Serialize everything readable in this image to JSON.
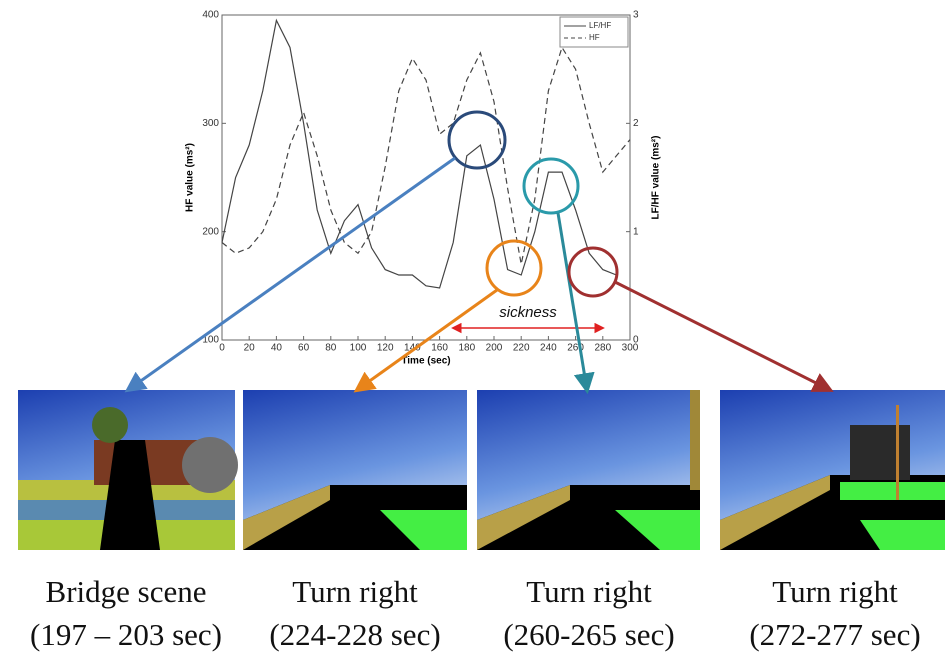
{
  "chart_data": {
    "type": "line",
    "x_label": "Time (sec)",
    "y_label": "HF value (ms²)",
    "y2_label": "LF/HF value (ms²)",
    "x": [
      0,
      10,
      20,
      30,
      40,
      50,
      60,
      70,
      80,
      90,
      100,
      110,
      120,
      130,
      140,
      150,
      160,
      170,
      180,
      190,
      200,
      210,
      220,
      230,
      240,
      250,
      260,
      270,
      280,
      290,
      300
    ],
    "series": [
      {
        "name": "LF/HF",
        "color": "#444444",
        "dash": "solid",
        "axis": "y2",
        "values": [
          0.9,
          1.5,
          1.8,
          2.3,
          2.95,
          2.7,
          2.0,
          1.2,
          0.8,
          1.1,
          1.25,
          0.85,
          0.65,
          0.6,
          0.6,
          0.5,
          0.48,
          0.9,
          1.7,
          1.8,
          1.3,
          0.65,
          0.6,
          1.0,
          1.55,
          1.55,
          1.2,
          0.8,
          0.65,
          0.6,
          null
        ]
      },
      {
        "name": "HF",
        "color": "#444444",
        "dash": "dashed",
        "values": [
          190,
          180,
          185,
          200,
          230,
          280,
          310,
          270,
          220,
          190,
          180,
          200,
          260,
          330,
          360,
          340,
          290,
          300,
          340,
          365,
          320,
          240,
          170,
          230,
          330,
          370,
          350,
          300,
          255,
          270,
          285
        ]
      }
    ],
    "xlim": [
      0,
      300
    ],
    "xticks": [
      0,
      20,
      40,
      60,
      80,
      100,
      120,
      140,
      160,
      180,
      200,
      220,
      240,
      260,
      280,
      300
    ],
    "ylim": [
      100,
      400
    ],
    "yticks": [
      100,
      200,
      300,
      400
    ],
    "y2lim": [
      0,
      3
    ],
    "y2ticks": [
      0,
      1,
      2,
      3
    ],
    "legend": "upper right",
    "annotation": {
      "text": "sickness",
      "x": [
        170,
        280
      ],
      "color": "#e02020"
    }
  },
  "captions": [
    {
      "title": "Bridge scene",
      "subtitle": "(197 – 203 sec)"
    },
    {
      "title": "Turn right",
      "subtitle": "(224-228 sec)"
    },
    {
      "title": "Turn right",
      "subtitle": "(260-265 sec)"
    },
    {
      "title": "Turn right",
      "subtitle": "(272-277 sec)"
    }
  ]
}
